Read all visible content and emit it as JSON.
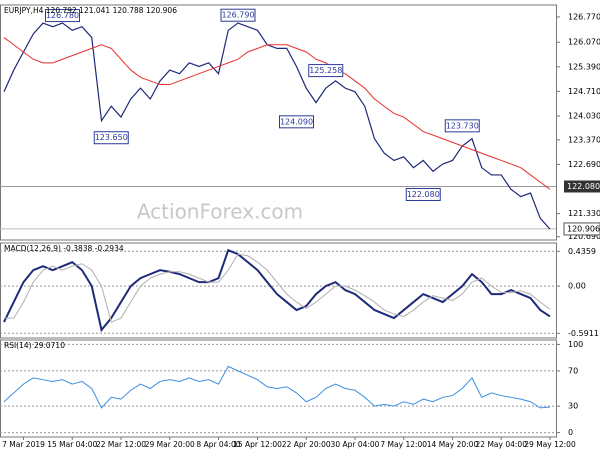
{
  "chart_data": [
    {
      "type": "line",
      "title": "EURJPY,H4 120.792 121.041 120.788 120.906",
      "watermark": "ActionForex.com",
      "series": [
        {
          "color": "#1f2a7a",
          "values": [
            124.7,
            125.3,
            125.8,
            126.3,
            126.6,
            126.5,
            126.6,
            126.4,
            126.5,
            126.2,
            123.9,
            124.3,
            124.0,
            124.5,
            124.8,
            124.5,
            125.0,
            125.3,
            125.2,
            125.5,
            125.4,
            125.5,
            125.2,
            126.4,
            126.6,
            126.5,
            126.4,
            126.0,
            125.9,
            125.9,
            125.4,
            124.8,
            124.4,
            124.8,
            125.0,
            124.8,
            124.7,
            124.3,
            123.4,
            123.0,
            122.8,
            122.9,
            122.6,
            122.8,
            122.5,
            122.7,
            122.8,
            123.2,
            123.4,
            122.6,
            122.4,
            122.4,
            122.0,
            121.8,
            121.9,
            121.2,
            120.9
          ]
        },
        {
          "color": "#e8302b",
          "values": [
            126.2,
            126.0,
            125.8,
            125.6,
            125.5,
            125.5,
            125.6,
            125.7,
            125.8,
            125.9,
            126.0,
            125.9,
            125.6,
            125.3,
            125.1,
            125.0,
            124.9,
            124.9,
            125.0,
            125.1,
            125.2,
            125.3,
            125.4,
            125.5,
            125.6,
            125.8,
            125.9,
            126.0,
            126.0,
            126.0,
            125.9,
            125.8,
            125.6,
            125.5,
            125.3,
            125.2,
            125.0,
            124.8,
            124.5,
            124.3,
            124.1,
            124.0,
            123.8,
            123.6,
            123.5,
            123.4,
            123.3,
            123.2,
            123.1,
            123.0,
            122.9,
            122.8,
            122.7,
            122.6,
            122.4,
            122.2,
            122.0
          ]
        }
      ],
      "ylim": [
        120.6,
        127.1
      ],
      "yticks": [
        {
          "value": 126.77,
          "label": "126.770"
        },
        {
          "value": 126.07,
          "label": "126.070"
        },
        {
          "value": 125.39,
          "label": "125.390"
        },
        {
          "value": 124.71,
          "label": "124.710"
        },
        {
          "value": 124.03,
          "label": "124.030"
        },
        {
          "value": 123.37,
          "label": "123.370"
        },
        {
          "value": 122.69,
          "label": "122.690"
        },
        {
          "value": 121.33,
          "label": "121.330"
        },
        {
          "value": 120.69,
          "label": "120.690"
        }
      ],
      "annotations": [
        {
          "x": 6,
          "value": 126.78,
          "label": "126.780"
        },
        {
          "x": 11,
          "value": 123.65,
          "label": "123.650"
        },
        {
          "x": 24,
          "value": 126.79,
          "label": "126.790"
        },
        {
          "x": 30,
          "value": 124.09,
          "label": "124.090"
        },
        {
          "x": 33,
          "value": 125.258,
          "label": "125.258"
        },
        {
          "x": 47,
          "value": 123.73,
          "label": "123.730"
        },
        {
          "x": 43,
          "value": 122.08,
          "label": "122.080"
        }
      ],
      "hline": {
        "value": 122.08,
        "label": "122.080"
      },
      "last": {
        "value": 120.906,
        "label": "120.906"
      }
    },
    {
      "type": "line",
      "title": "MACD(12,26,9) -0.3838 -0.2934",
      "grid": true,
      "series": [
        {
          "color": "#1f2a7a",
          "values": [
            -0.45,
            -0.2,
            0.05,
            0.2,
            0.25,
            0.2,
            0.25,
            0.3,
            0.2,
            0.0,
            -0.55,
            -0.4,
            -0.2,
            0.0,
            0.1,
            0.15,
            0.2,
            0.18,
            0.15,
            0.1,
            0.05,
            0.05,
            0.1,
            0.45,
            0.4,
            0.3,
            0.2,
            0.05,
            -0.1,
            -0.2,
            -0.3,
            -0.25,
            -0.1,
            0.0,
            0.05,
            -0.05,
            -0.1,
            -0.2,
            -0.3,
            -0.35,
            -0.4,
            -0.3,
            -0.2,
            -0.1,
            -0.15,
            -0.2,
            -0.1,
            0.0,
            0.15,
            0.05,
            -0.1,
            -0.1,
            -0.05,
            -0.1,
            -0.15,
            -0.3,
            -0.38
          ]
        },
        {
          "color": "#b0b0b0",
          "values": [
            -0.4,
            -0.4,
            -0.2,
            0.05,
            0.2,
            0.25,
            0.2,
            0.25,
            0.28,
            0.2,
            0.0,
            -0.45,
            -0.4,
            -0.2,
            0.0,
            0.1,
            0.15,
            0.18,
            0.18,
            0.15,
            0.1,
            0.05,
            0.05,
            0.2,
            0.4,
            0.38,
            0.3,
            0.2,
            0.05,
            -0.1,
            -0.2,
            -0.28,
            -0.2,
            -0.1,
            0.0,
            0.0,
            -0.05,
            -0.12,
            -0.2,
            -0.3,
            -0.35,
            -0.38,
            -0.3,
            -0.2,
            -0.12,
            -0.15,
            -0.18,
            -0.1,
            0.05,
            0.1,
            0.0,
            -0.08,
            -0.08,
            -0.06,
            -0.1,
            -0.2,
            -0.29
          ]
        }
      ],
      "ylim": [
        -0.65,
        0.54
      ],
      "yticks": [
        0.4359,
        {
          "value": 0,
          "label": "0.00"
        },
        -0.5911
      ]
    },
    {
      "type": "line",
      "title": "RSI(14) 29.0710",
      "grid": true,
      "series": [
        {
          "color": "#3a8fe0",
          "values": [
            35,
            45,
            55,
            62,
            60,
            58,
            60,
            55,
            58,
            50,
            28,
            40,
            38,
            48,
            55,
            50,
            58,
            60,
            58,
            62,
            58,
            60,
            55,
            75,
            70,
            65,
            60,
            52,
            50,
            52,
            45,
            35,
            40,
            50,
            55,
            50,
            48,
            40,
            30,
            32,
            30,
            35,
            32,
            38,
            35,
            40,
            42,
            50,
            62,
            40,
            45,
            42,
            40,
            38,
            35,
            28,
            29
          ]
        }
      ],
      "ylim": [
        -5,
        105
      ],
      "yticks": [
        100,
        70,
        30,
        0
      ],
      "categories": [
        null,
        null,
        "7 Mar 2019",
        null,
        null,
        null,
        null,
        "15 Mar 04:00",
        null,
        null,
        null,
        null,
        "22 Mar 12:00",
        null,
        null,
        null,
        null,
        "29 Mar 20:00",
        null,
        null,
        null,
        null,
        "8 Apr 04:00",
        null,
        null,
        null,
        "15 Apr 12:00",
        null,
        null,
        null,
        null,
        "22 Apr 20:00",
        null,
        null,
        null,
        null,
        "30 Apr 04:00",
        null,
        null,
        null,
        null,
        "7 May 12:00",
        null,
        null,
        null,
        null,
        "14 May 20:00",
        null,
        null,
        null,
        null,
        "22 May 04:00",
        null,
        null,
        null,
        null,
        "29 May 12:00"
      ]
    }
  ]
}
